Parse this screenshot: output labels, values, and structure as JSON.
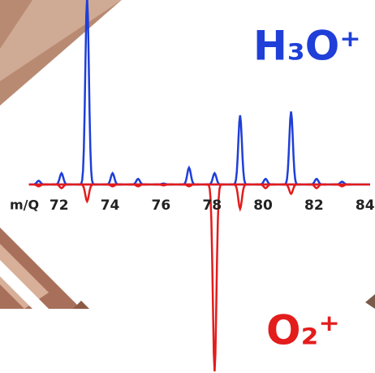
{
  "chart_data": {
    "type": "line",
    "x_label": "m/Q",
    "x": [
      71.2,
      72.1,
      73.1,
      74.1,
      75.1,
      76.1,
      77.1,
      78.1,
      79.1,
      80.1,
      81.1,
      82.1,
      83.1
    ],
    "series": [
      {
        "name": "H₃O⁺",
        "color": "#1f3fd8",
        "values": [
          2,
          6,
          100,
          6,
          3,
          0.5,
          9,
          6,
          37,
          3,
          39,
          3,
          1.5
        ]
      },
      {
        "name": "O₂⁺",
        "color": "#e31c1c",
        "values": [
          -1,
          -2,
          -9,
          -1,
          -1,
          -0.5,
          -1,
          -100,
          -13,
          -2,
          -5,
          -2,
          -1
        ]
      }
    ],
    "xlim": [
      70.8,
      84.2
    ],
    "xticks": [
      72,
      74,
      76,
      78,
      80,
      82,
      84
    ],
    "ylim": [
      -100,
      100
    ]
  }
}
